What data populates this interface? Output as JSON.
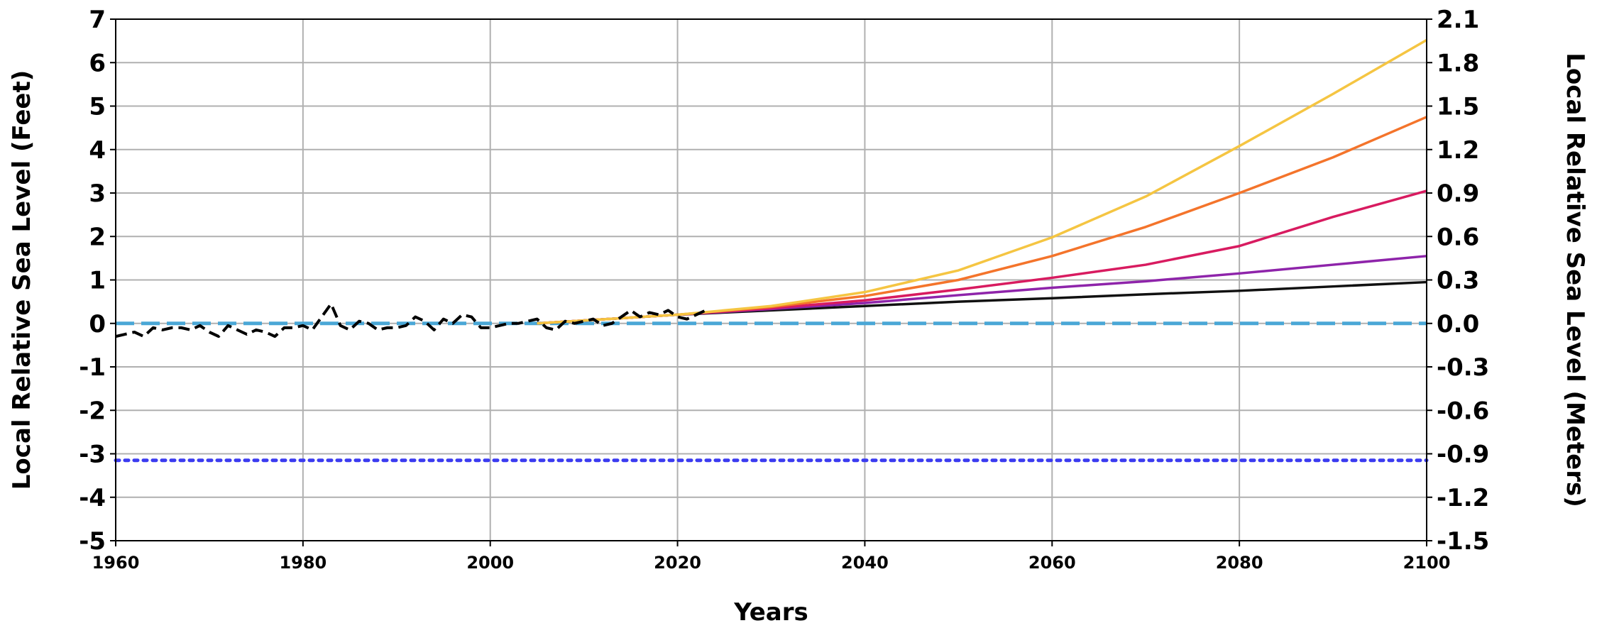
{
  "chart_data": {
    "type": "line",
    "xlabel": "Years",
    "ylabel_left": "Local Relative Sea Level (Feet)",
    "ylabel_right": "Local Relative Sea Level (Meters)",
    "xlim": [
      1960,
      2100
    ],
    "ylim_left": [
      -5,
      7
    ],
    "ylim_right": [
      -1.5,
      2.1
    ],
    "x_ticks": [
      "1960",
      "1980",
      "2000",
      "2020",
      "2040",
      "2060",
      "2080",
      "2100"
    ],
    "y_ticks_left": [
      "7",
      "6",
      "5",
      "4",
      "3",
      "2",
      "1",
      "0",
      "-1",
      "-2",
      "-3",
      "-4",
      "-5"
    ],
    "y_ticks_right": [
      "2.1",
      "1.8",
      "1.5",
      "1.2",
      "0.9",
      "0.6",
      "0.3",
      "0.0",
      "-0.3",
      "-0.6",
      "-0.9",
      "-1.2",
      "-1.5"
    ],
    "grid": true,
    "reference_lines": [
      {
        "y": 0,
        "style": "dashed",
        "color": "#4aa7d6"
      },
      {
        "y": -3.15,
        "style": "dotted",
        "color": "#3b3bf0"
      }
    ],
    "observed": {
      "style": "dashed",
      "color": "#000000",
      "x": [
        1960,
        1961,
        1962,
        1963,
        1964,
        1965,
        1966,
        1967,
        1968,
        1969,
        1970,
        1971,
        1972,
        1973,
        1974,
        1975,
        1976,
        1977,
        1978,
        1979,
        1980,
        1981,
        1982,
        1983,
        1984,
        1985,
        1986,
        1987,
        1988,
        1989,
        1990,
        1991,
        1992,
        1993,
        1994,
        1995,
        1996,
        1997,
        1998,
        1999,
        2000,
        2001,
        2002,
        2003,
        2004,
        2005,
        2006,
        2007,
        2008,
        2009,
        2010,
        2011,
        2012,
        2013,
        2014,
        2015,
        2016,
        2017,
        2018,
        2019,
        2020,
        2021,
        2022,
        2023
      ],
      "y": [
        -0.3,
        -0.25,
        -0.2,
        -0.3,
        -0.1,
        -0.15,
        -0.1,
        -0.1,
        -0.15,
        -0.05,
        -0.2,
        -0.3,
        -0.05,
        -0.15,
        -0.25,
        -0.15,
        -0.2,
        -0.3,
        -0.1,
        -0.1,
        -0.05,
        -0.15,
        0.15,
        0.45,
        -0.05,
        -0.15,
        0.05,
        0.0,
        -0.15,
        -0.1,
        -0.1,
        -0.05,
        0.15,
        0.05,
        -0.15,
        0.1,
        0.0,
        0.2,
        0.15,
        -0.1,
        -0.1,
        -0.05,
        0.0,
        0.0,
        0.05,
        0.1,
        -0.1,
        -0.15,
        0.05,
        0.0,
        0.05,
        0.1,
        -0.05,
        0.0,
        0.15,
        0.3,
        0.15,
        0.25,
        0.2,
        0.3,
        0.15,
        0.1,
        0.2,
        0.3
      ]
    },
    "series": [
      {
        "color": "#111111",
        "x": [
          2005,
          2020,
          2030,
          2040,
          2050,
          2060,
          2070,
          2080,
          2090,
          2100
        ],
        "y": [
          0.0,
          0.2,
          0.3,
          0.4,
          0.5,
          0.58,
          0.67,
          0.75,
          0.85,
          0.95
        ]
      },
      {
        "color": "#8e24aa",
        "x": [
          2005,
          2020,
          2030,
          2040,
          2050,
          2060,
          2070,
          2080,
          2090,
          2100
        ],
        "y": [
          0.0,
          0.2,
          0.33,
          0.47,
          0.65,
          0.82,
          0.97,
          1.15,
          1.35,
          1.55
        ]
      },
      {
        "color": "#d81b60",
        "x": [
          2005,
          2020,
          2030,
          2040,
          2050,
          2060,
          2070,
          2080,
          2090,
          2100
        ],
        "y": [
          0.0,
          0.2,
          0.35,
          0.53,
          0.78,
          1.05,
          1.35,
          1.78,
          2.45,
          3.05
        ]
      },
      {
        "color": "#f4742b",
        "x": [
          2005,
          2020,
          2030,
          2040,
          2050,
          2060,
          2070,
          2080,
          2090,
          2100
        ],
        "y": [
          0.0,
          0.2,
          0.38,
          0.63,
          1.0,
          1.55,
          2.22,
          3.0,
          3.82,
          4.75
        ]
      },
      {
        "color": "#f5c542",
        "x": [
          2005,
          2020,
          2030,
          2040,
          2050,
          2060,
          2070,
          2080,
          2090,
          2100
        ],
        "y": [
          0.0,
          0.2,
          0.4,
          0.72,
          1.22,
          1.98,
          2.92,
          4.08,
          5.28,
          6.52
        ]
      }
    ]
  }
}
